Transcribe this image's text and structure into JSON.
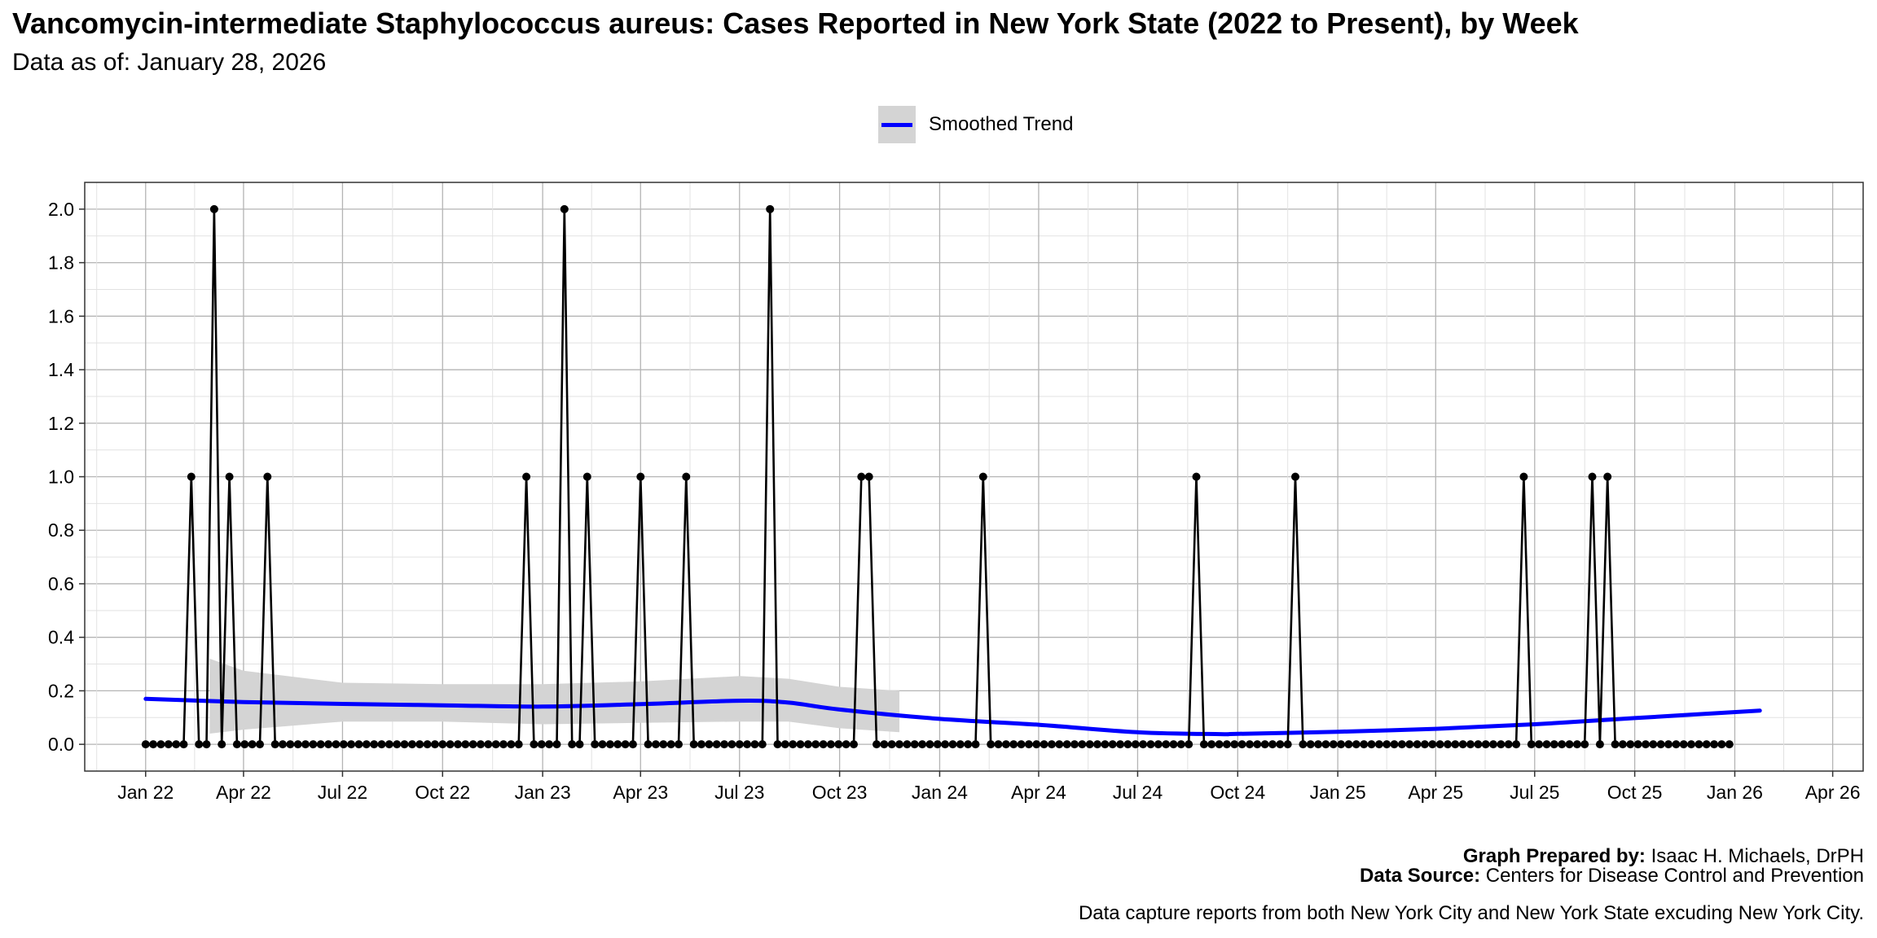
{
  "chart_data": {
    "type": "line",
    "title": "Vancomycin-intermediate Staphylococcus aureus: Cases Reported in New York State (2022 to Present), by Week",
    "subtitle": "Data as of: January 28, 2026",
    "xlabel": "",
    "ylabel": "",
    "ylim": [
      -0.1,
      2.1
    ],
    "y_ticks": [
      "0.0",
      "0.2",
      "0.4",
      "0.6",
      "0.8",
      "1.0",
      "1.2",
      "1.4",
      "1.6",
      "1.8",
      "2.0"
    ],
    "x_ticks": [
      {
        "date": "2022-01-01",
        "label": "Jan 22"
      },
      {
        "date": "2022-04-01",
        "label": "Apr 22"
      },
      {
        "date": "2022-07-01",
        "label": "Jul 22"
      },
      {
        "date": "2022-10-01",
        "label": "Oct 22"
      },
      {
        "date": "2023-01-01",
        "label": "Jan 23"
      },
      {
        "date": "2023-04-01",
        "label": "Apr 23"
      },
      {
        "date": "2023-07-01",
        "label": "Jul 23"
      },
      {
        "date": "2023-10-01",
        "label": "Oct 23"
      },
      {
        "date": "2024-01-01",
        "label": "Jan 24"
      },
      {
        "date": "2024-04-01",
        "label": "Apr 24"
      },
      {
        "date": "2024-07-01",
        "label": "Jul 24"
      },
      {
        "date": "2024-10-01",
        "label": "Oct 24"
      },
      {
        "date": "2025-01-01",
        "label": "Jan 25"
      },
      {
        "date": "2025-04-01",
        "label": "Apr 25"
      },
      {
        "date": "2025-07-01",
        "label": "Jul 25"
      },
      {
        "date": "2025-10-01",
        "label": "Oct 25"
      },
      {
        "date": "2026-01-01",
        "label": "Jan 26"
      },
      {
        "date": "2026-04-01",
        "label": "Apr 26"
      }
    ],
    "x_range": [
      "2021-11-06",
      "2026-04-29"
    ],
    "grid": true,
    "legend_position": "top",
    "series": [
      {
        "name": "Cases",
        "color": "#000000",
        "first_week": "2022-01-01",
        "week_interval_days": 7,
        "values": [
          0,
          0,
          0,
          0,
          0,
          0,
          1,
          0,
          0,
          2,
          0,
          1,
          0,
          0,
          0,
          0,
          1,
          0,
          0,
          0,
          0,
          0,
          0,
          0,
          0,
          0,
          0,
          0,
          0,
          0,
          0,
          0,
          0,
          0,
          0,
          0,
          0,
          0,
          0,
          0,
          0,
          0,
          0,
          0,
          0,
          0,
          0,
          0,
          0,
          0,
          1,
          0,
          0,
          0,
          0,
          2,
          0,
          0,
          1,
          0,
          0,
          0,
          0,
          0,
          0,
          1,
          0,
          0,
          0,
          0,
          0,
          1,
          0,
          0,
          0,
          0,
          0,
          0,
          0,
          0,
          0,
          0,
          2,
          0,
          0,
          0,
          0,
          0,
          0,
          0,
          0,
          0,
          0,
          0,
          1,
          1,
          0,
          0,
          0,
          0,
          0,
          0,
          0,
          0,
          0,
          0,
          0,
          0,
          0,
          0,
          1,
          0,
          0,
          0,
          0,
          0,
          0,
          0,
          0,
          0,
          0,
          0,
          0,
          0,
          0,
          0,
          0,
          0,
          0,
          0,
          0,
          0,
          0,
          0,
          0,
          0,
          0,
          0,
          1,
          0,
          0,
          0,
          0,
          0,
          0,
          0,
          0,
          0,
          0,
          0,
          0,
          1,
          0,
          0,
          0,
          0,
          0,
          0,
          0,
          0,
          0,
          0,
          0,
          0,
          0,
          0,
          0,
          0,
          0,
          0,
          0,
          0,
          0,
          0,
          0,
          0,
          0,
          0,
          0,
          0,
          0,
          1,
          0,
          0,
          0,
          0,
          0,
          0,
          0,
          0,
          1,
          0,
          1,
          0,
          0,
          0,
          0,
          0,
          0,
          0,
          0,
          0,
          0,
          0,
          0,
          0,
          0,
          0,
          0
        ]
      }
    ],
    "trend": {
      "name": "Smoothed Trend",
      "color": "#0000ff",
      "band_color": "#d4d4d4",
      "points": [
        {
          "date": "2022-01-01",
          "y": 0.17
        },
        {
          "date": "2022-04-01",
          "y": 0.158
        },
        {
          "date": "2022-07-01",
          "y": 0.151
        },
        {
          "date": "2022-10-01",
          "y": 0.146
        },
        {
          "date": "2023-01-01",
          "y": 0.141
        },
        {
          "date": "2023-04-01",
          "y": 0.15
        },
        {
          "date": "2023-07-01",
          "y": 0.163
        },
        {
          "date": "2023-08-15",
          "y": 0.156
        },
        {
          "date": "2023-10-01",
          "y": 0.13
        },
        {
          "date": "2024-01-01",
          "y": 0.095
        },
        {
          "date": "2024-04-01",
          "y": 0.073
        },
        {
          "date": "2024-07-01",
          "y": 0.045
        },
        {
          "date": "2024-09-15",
          "y": 0.038
        },
        {
          "date": "2024-10-01",
          "y": 0.039
        },
        {
          "date": "2025-01-01",
          "y": 0.047
        },
        {
          "date": "2025-04-01",
          "y": 0.058
        },
        {
          "date": "2025-07-01",
          "y": 0.075
        },
        {
          "date": "2025-10-01",
          "y": 0.098
        },
        {
          "date": "2026-01-24",
          "y": 0.126
        }
      ],
      "band": [
        {
          "date": "2022-03-01",
          "lower": 0.04,
          "upper": 0.32
        },
        {
          "date": "2022-04-01",
          "lower": 0.055,
          "upper": 0.275
        },
        {
          "date": "2022-07-01",
          "lower": 0.085,
          "upper": 0.23
        },
        {
          "date": "2022-10-01",
          "lower": 0.085,
          "upper": 0.225
        },
        {
          "date": "2023-01-01",
          "lower": 0.075,
          "upper": 0.225
        },
        {
          "date": "2023-04-01",
          "lower": 0.08,
          "upper": 0.235
        },
        {
          "date": "2023-07-01",
          "lower": 0.085,
          "upper": 0.255
        },
        {
          "date": "2023-08-15",
          "lower": 0.085,
          "upper": 0.245
        },
        {
          "date": "2023-10-01",
          "lower": 0.06,
          "upper": 0.215
        },
        {
          "date": "2023-11-25",
          "lower": 0.045,
          "upper": 0.2
        }
      ]
    }
  },
  "legend": {
    "label": "Smoothed Trend"
  },
  "caption": {
    "prepared_label": "Graph Prepared by:",
    "prepared_value": "Isaac H. Michaels, DrPH",
    "source_label": "Data Source:",
    "source_value": "Centers for Disease Control and Prevention",
    "note": "Data capture reports from both New York City and New York State excuding New York City."
  }
}
